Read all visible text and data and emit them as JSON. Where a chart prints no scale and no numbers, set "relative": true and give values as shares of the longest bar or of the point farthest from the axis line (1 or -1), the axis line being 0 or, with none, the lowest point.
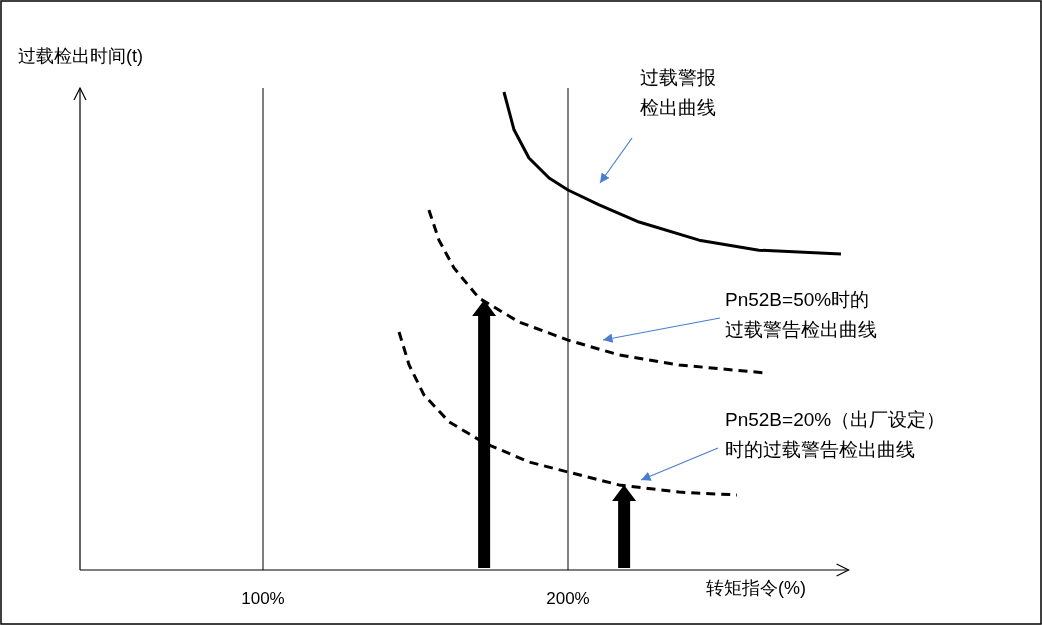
{
  "chart_data": {
    "type": "line",
    "relative": true,
    "xlabel": "转矩指令(%)",
    "ylabel": "过载检出时间(t)",
    "xlim": [
      40,
      292
    ],
    "xticks": [
      {
        "value": 100,
        "label": "100%"
      },
      {
        "value": 200,
        "label": "200%"
      }
    ],
    "grid": "x",
    "series": [
      {
        "color": "#000000",
        "line_style": "solid",
        "x": [
          179.0,
          182.3,
          187.2,
          193.8,
          200,
          210.2,
          223.3,
          243.0,
          262.6,
          289.5
        ],
        "values": [
          1,
          0.921,
          0.862,
          0.82,
          0.795,
          0.764,
          0.728,
          0.69,
          0.669,
          0.661
        ]
      },
      {
        "color": "#000000",
        "line_style": "dashed",
        "x": [
          154.4,
          157.7,
          162.6,
          170.8,
          183.9,
          200,
          216.7,
          236.4,
          265.2
        ],
        "values": [
          0.753,
          0.69,
          0.632,
          0.569,
          0.519,
          0.481,
          0.45,
          0.429,
          0.412
        ]
      },
      {
        "color": "#000000",
        "line_style": "dashed",
        "x": [
          144.6,
          147.9,
          152.8,
          161.0,
          172.5,
          187.2,
          200,
          216.7,
          236.4,
          255.4
        ],
        "values": [
          0.498,
          0.429,
          0.366,
          0.31,
          0.266,
          0.226,
          0.205,
          0.178,
          0.163,
          0.157
        ]
      }
    ],
    "annotations": [
      "过载警报检出曲线",
      "Pn52B=50%时的过载警告检出曲线",
      "Pn52B=20%（出厂设定）时的过载警告检出曲线"
    ]
  }
}
